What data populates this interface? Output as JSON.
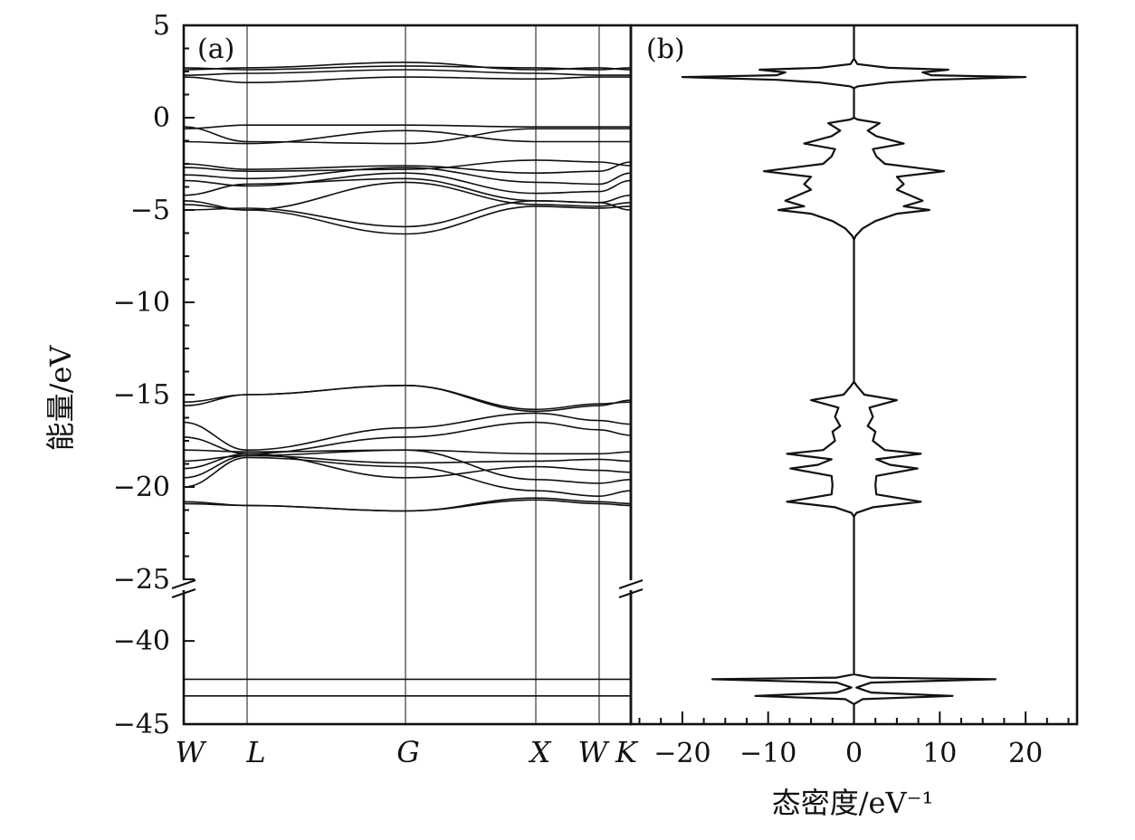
{
  "chart_data": [
    {
      "type": "line",
      "panel": "(a)",
      "chart_kind": "band structure",
      "ylabel": "能量/eV",
      "x_kpoints": [
        "W",
        "L",
        "G",
        "X",
        "W",
        "K"
      ],
      "y_break": {
        "lower_range": [
          -45,
          -37
        ],
        "upper_range": [
          -25,
          5
        ]
      },
      "yticks": [
        5,
        0,
        -5,
        -10,
        -15,
        -20,
        -25,
        -40,
        -45
      ],
      "ytick_labels": [
        "5",
        "0",
        "−5",
        "−10",
        "−15",
        "−20",
        "−25",
        "−40",
        "−45"
      ],
      "bands": [
        {
          "name": "c1",
          "values": [
            2.3,
            2.4,
            2.6,
            2.4,
            2.3,
            2.3
          ]
        },
        {
          "name": "c2",
          "values": [
            2.6,
            2.7,
            3.0,
            2.6,
            2.7,
            2.6
          ]
        },
        {
          "name": "c3",
          "values": [
            2.2,
            1.9,
            2.2,
            2.1,
            2.2,
            2.2
          ]
        },
        {
          "name": "c4",
          "values": [
            2.7,
            2.6,
            2.8,
            2.7,
            2.6,
            2.7
          ]
        },
        {
          "name": "v1",
          "values": [
            -0.6,
            -0.4,
            -0.4,
            -0.5,
            -0.5,
            -0.5
          ]
        },
        {
          "name": "v2",
          "values": [
            -1.3,
            -1.4,
            -0.7,
            -1.3,
            -1.3,
            -1.3
          ]
        },
        {
          "name": "v3",
          "values": [
            -0.5,
            -1.3,
            -1.4,
            -0.6,
            -0.6,
            -0.6
          ]
        },
        {
          "name": "v4",
          "values": [
            -2.5,
            -2.8,
            -2.6,
            -3.0,
            -2.9,
            -2.4
          ]
        },
        {
          "name": "v5",
          "values": [
            -2.7,
            -2.9,
            -2.8,
            -2.3,
            -2.4,
            -2.6
          ]
        },
        {
          "name": "v6",
          "values": [
            -3.1,
            -3.3,
            -2.7,
            -3.5,
            -3.6,
            -3.0
          ]
        },
        {
          "name": "v7",
          "values": [
            -3.4,
            -3.7,
            -3.0,
            -4.1,
            -4.0,
            -3.4
          ]
        },
        {
          "name": "v8",
          "values": [
            -4.2,
            -3.6,
            -3.3,
            -4.5,
            -4.6,
            -4.2
          ]
        },
        {
          "name": "v9",
          "values": [
            -4.5,
            -5.0,
            -3.5,
            -4.7,
            -4.8,
            -4.6
          ]
        },
        {
          "name": "v10",
          "values": [
            -5.0,
            -4.9,
            -5.9,
            -4.5,
            -4.6,
            -5.0
          ]
        },
        {
          "name": "v11",
          "values": [
            -4.7,
            -5.0,
            -6.3,
            -4.8,
            -4.9,
            -4.8
          ]
        },
        {
          "name": "s1",
          "values": [
            -15.4,
            -15.0,
            -14.5,
            -15.9,
            -15.6,
            -15.3
          ]
        },
        {
          "name": "s2",
          "values": [
            -15.6,
            -15.0,
            -14.5,
            -15.8,
            -15.5,
            -15.4
          ]
        },
        {
          "name": "s3",
          "values": [
            -16.5,
            -18.0,
            -16.8,
            -16.0,
            -16.4,
            -16.6
          ]
        },
        {
          "name": "s4",
          "values": [
            -17.3,
            -18.2,
            -17.3,
            -16.5,
            -16.9,
            -17.2
          ]
        },
        {
          "name": "s5",
          "values": [
            -18.0,
            -18.1,
            -18.0,
            -18.2,
            -18.2,
            -18.1
          ]
        },
        {
          "name": "s6",
          "values": [
            -18.6,
            -18.3,
            -18.7,
            -18.6,
            -18.5,
            -18.6
          ]
        },
        {
          "name": "s7",
          "values": [
            -19.0,
            -18.2,
            -19.5,
            -18.9,
            -19.1,
            -19.2
          ]
        },
        {
          "name": "s8",
          "values": [
            -19.5,
            -18.3,
            -18.0,
            -19.6,
            -19.8,
            -19.6
          ]
        },
        {
          "name": "s9",
          "values": [
            -20.0,
            -18.4,
            -18.9,
            -20.2,
            -20.5,
            -20.2
          ]
        },
        {
          "name": "s10",
          "values": [
            -20.8,
            -21.0,
            -21.3,
            -20.6,
            -20.8,
            -20.9
          ]
        },
        {
          "name": "s11",
          "values": [
            -20.9,
            -21.0,
            -21.3,
            -20.7,
            -20.9,
            -21.0
          ]
        },
        {
          "name": "d1",
          "values": [
            -42.3,
            -42.3,
            -42.3,
            -42.3,
            -42.3,
            -42.3
          ]
        },
        {
          "name": "d2",
          "values": [
            -43.3,
            -43.3,
            -43.3,
            -43.3,
            -43.3,
            -43.3
          ]
        }
      ]
    },
    {
      "type": "line",
      "panel": "(b)",
      "chart_kind": "density of states (mirrored about x = 0)",
      "xlabel": "态密度/eV⁻¹",
      "xlim": [
        -26,
        26
      ],
      "xticks": [
        -20,
        -10,
        0,
        10,
        20
      ],
      "xtick_labels": [
        "−20",
        "−10",
        "0",
        "10",
        "20"
      ],
      "dos_profile": [
        {
          "e": 5.0,
          "d": 0
        },
        {
          "e": 3.2,
          "d": 0
        },
        {
          "e": 2.9,
          "d": 0.4
        },
        {
          "e": 2.7,
          "d": 4
        },
        {
          "e": 2.6,
          "d": 11
        },
        {
          "e": 2.45,
          "d": 8
        },
        {
          "e": 2.3,
          "d": 9
        },
        {
          "e": 2.2,
          "d": 20
        },
        {
          "e": 2.05,
          "d": 9
        },
        {
          "e": 1.9,
          "d": 4
        },
        {
          "e": 1.7,
          "d": 0.5
        },
        {
          "e": 1.6,
          "d": 0
        },
        {
          "e": 0.0,
          "d": 0
        },
        {
          "e": -0.1,
          "d": 0.4
        },
        {
          "e": -0.3,
          "d": 3
        },
        {
          "e": -0.7,
          "d": 1.6
        },
        {
          "e": -1.0,
          "d": 2.6
        },
        {
          "e": -1.4,
          "d": 5.8
        },
        {
          "e": -1.7,
          "d": 2.2
        },
        {
          "e": -2.1,
          "d": 2.6
        },
        {
          "e": -2.5,
          "d": 3.6
        },
        {
          "e": -2.9,
          "d": 10.5
        },
        {
          "e": -3.2,
          "d": 5.0
        },
        {
          "e": -3.6,
          "d": 5.8
        },
        {
          "e": -3.9,
          "d": 5.0
        },
        {
          "e": -4.1,
          "d": 6.0
        },
        {
          "e": -4.5,
          "d": 8.0
        },
        {
          "e": -4.8,
          "d": 5.8
        },
        {
          "e": -5.0,
          "d": 8.8
        },
        {
          "e": -5.2,
          "d": 5.0
        },
        {
          "e": -5.6,
          "d": 2.5
        },
        {
          "e": -6.0,
          "d": 1.0
        },
        {
          "e": -6.4,
          "d": 0.2
        },
        {
          "e": -6.6,
          "d": 0
        },
        {
          "e": -14.3,
          "d": 0
        },
        {
          "e": -14.5,
          "d": 0.3
        },
        {
          "e": -15.0,
          "d": 1.2
        },
        {
          "e": -15.3,
          "d": 5.0
        },
        {
          "e": -15.7,
          "d": 1.8
        },
        {
          "e": -16.2,
          "d": 2.2
        },
        {
          "e": -16.7,
          "d": 1.6
        },
        {
          "e": -17.0,
          "d": 2.5
        },
        {
          "e": -17.5,
          "d": 2.2
        },
        {
          "e": -18.0,
          "d": 3.6
        },
        {
          "e": -18.2,
          "d": 7.8
        },
        {
          "e": -18.5,
          "d": 2.6
        },
        {
          "e": -18.8,
          "d": 4.2
        },
        {
          "e": -19.0,
          "d": 7.4
        },
        {
          "e": -19.4,
          "d": 2.6
        },
        {
          "e": -19.9,
          "d": 2.5
        },
        {
          "e": -20.4,
          "d": 2.6
        },
        {
          "e": -20.8,
          "d": 7.8
        },
        {
          "e": -21.1,
          "d": 2.2
        },
        {
          "e": -21.4,
          "d": 0.3
        },
        {
          "e": -21.6,
          "d": 0
        },
        {
          "e": -42.0,
          "d": 0
        },
        {
          "e": -42.2,
          "d": 2.0
        },
        {
          "e": -42.3,
          "d": 16.5
        },
        {
          "e": -42.5,
          "d": 2.0
        },
        {
          "e": -42.8,
          "d": 0.3
        },
        {
          "e": -43.1,
          "d": 2.0
        },
        {
          "e": -43.3,
          "d": 11.5
        },
        {
          "e": -43.5,
          "d": 1.0
        },
        {
          "e": -43.8,
          "d": 0
        },
        {
          "e": -45.0,
          "d": 0
        }
      ]
    }
  ]
}
